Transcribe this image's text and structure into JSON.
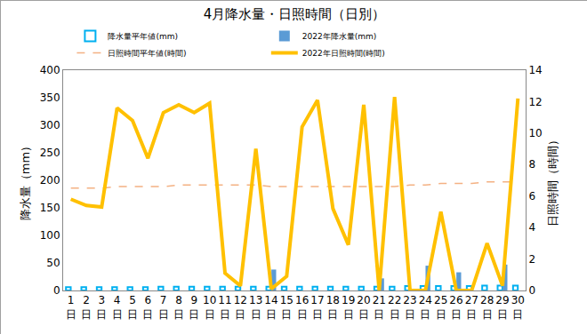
{
  "chart_data": {
    "type": "bar",
    "title": "4月降水量・日照時間（日別）",
    "y_label": "降水量（mm）",
    "y2_label": "日照時間（時間）",
    "categories": [
      "1日",
      "2日",
      "3日",
      "4日",
      "5日",
      "6日",
      "7日",
      "8日",
      "9日",
      "10日",
      "11日",
      "12日",
      "13日",
      "14日",
      "15日",
      "16日",
      "17日",
      "18日",
      "19日",
      "20日",
      "21日",
      "22日",
      "23日",
      "24日",
      "25日",
      "26日",
      "27日",
      "28日",
      "29日",
      "30日"
    ],
    "series": [
      {
        "name": "降水量平年値(mm)",
        "type": "bar",
        "color": "#00b0f0",
        "marker": "hollow",
        "values": [
          6,
          6,
          6,
          6,
          6,
          6,
          7,
          7,
          7,
          7,
          7,
          7,
          7,
          7,
          7,
          7,
          7,
          7,
          7,
          7,
          7,
          7,
          8,
          8,
          8,
          8,
          8,
          9,
          9,
          9
        ]
      },
      {
        "name": "2022年降水量(mm)",
        "type": "bar",
        "color": "#5b9bd5",
        "marker": "filled",
        "values": [
          0,
          0,
          0,
          0,
          0,
          0,
          0,
          0,
          0,
          0,
          0,
          0,
          0,
          38,
          0,
          0,
          0,
          0,
          0,
          0,
          22,
          0,
          0,
          45,
          0,
          33,
          0,
          0,
          47,
          0
        ]
      },
      {
        "name": "日照時間平年値(時間)",
        "type": "line",
        "axis": "y2",
        "color": "#f4b183",
        "line_style": "dashed",
        "values": [
          6.5,
          6.5,
          6.5,
          6.6,
          6.6,
          6.6,
          6.6,
          6.7,
          6.7,
          6.7,
          6.7,
          6.7,
          6.7,
          6.6,
          6.6,
          6.6,
          6.6,
          6.6,
          6.6,
          6.6,
          6.6,
          6.6,
          6.7,
          6.7,
          6.8,
          6.8,
          6.8,
          6.9,
          6.9,
          6.9
        ]
      },
      {
        "name": "2022年日照時間(時間)",
        "type": "line",
        "axis": "y2",
        "color": "#ffc000",
        "line_style": "solid",
        "values": [
          5.8,
          5.4,
          5.3,
          11.6,
          10.8,
          8.4,
          11.3,
          11.8,
          11.3,
          11.9,
          1.1,
          0.3,
          9.0,
          0.1,
          0.9,
          10.4,
          12.1,
          5.2,
          2.9,
          11.8,
          0.0,
          12.3,
          0.0,
          0.0,
          5.0,
          0.0,
          0.0,
          3.0,
          0.3,
          12.2
        ]
      }
    ],
    "ylim": [
      0,
      400
    ],
    "yticks": [
      0,
      50,
      100,
      150,
      200,
      250,
      300,
      350,
      400
    ],
    "y2lim": [
      0,
      14
    ],
    "y2ticks": [
      0,
      2,
      4,
      6,
      8,
      10,
      12,
      14
    ],
    "grid": false,
    "legend": "top"
  }
}
